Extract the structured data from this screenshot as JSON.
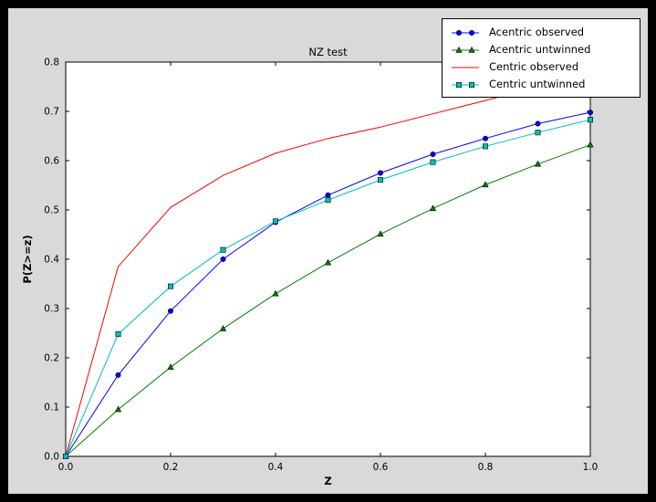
{
  "colors": {
    "window_bg": "#000000",
    "figure_bg": "#d9d9d9",
    "axes_bg": "#ffffff",
    "legend_bg": "#ffffff",
    "frame": "#000000"
  },
  "chart_data": {
    "type": "line",
    "title": "NZ test",
    "xlabel": "Z",
    "ylabel": "P(Z>=z)",
    "xlim": [
      0.0,
      1.0
    ],
    "ylim": [
      0.0,
      0.8
    ],
    "grid": false,
    "legend_position": "upper right",
    "xticks": [
      0.0,
      0.2,
      0.4,
      0.6,
      0.8,
      1.0
    ],
    "xtick_labels": [
      "0.0",
      "0.2",
      "0.4",
      "0.6",
      "0.8",
      "1.0"
    ],
    "yticks": [
      0.0,
      0.1,
      0.2,
      0.3,
      0.4,
      0.5,
      0.6,
      0.7,
      0.8
    ],
    "ytick_labels": [
      "0.0",
      "0.1",
      "0.2",
      "0.3",
      "0.4",
      "0.5",
      "0.6",
      "0.7",
      "0.8"
    ],
    "x": [
      0.0,
      0.1,
      0.2,
      0.3,
      0.4,
      0.5,
      0.6,
      0.7,
      0.8,
      0.9,
      1.0
    ],
    "series": [
      {
        "name": "Acentric observed",
        "color": "#0000ff",
        "marker": "circle",
        "values": [
          0.0,
          0.165,
          0.295,
          0.4,
          0.475,
          0.53,
          0.575,
          0.613,
          0.645,
          0.675,
          0.698
        ]
      },
      {
        "name": "Acentric untwinned",
        "color": "#008000",
        "marker": "triangle",
        "values": [
          0.0,
          0.095,
          0.181,
          0.259,
          0.33,
          0.393,
          0.451,
          0.503,
          0.551,
          0.593,
          0.632
        ]
      },
      {
        "name": "Centric observed",
        "color": "#ff0000",
        "marker": "none",
        "values": [
          0.0,
          0.385,
          0.505,
          0.57,
          0.615,
          0.645,
          0.668,
          0.695,
          0.722,
          0.75,
          0.775
        ]
      },
      {
        "name": "Centric untwinned",
        "color": "#00bfbf",
        "marker": "square",
        "values": [
          0.0,
          0.248,
          0.345,
          0.419,
          0.477,
          0.52,
          0.561,
          0.597,
          0.629,
          0.657,
          0.683
        ]
      }
    ]
  }
}
